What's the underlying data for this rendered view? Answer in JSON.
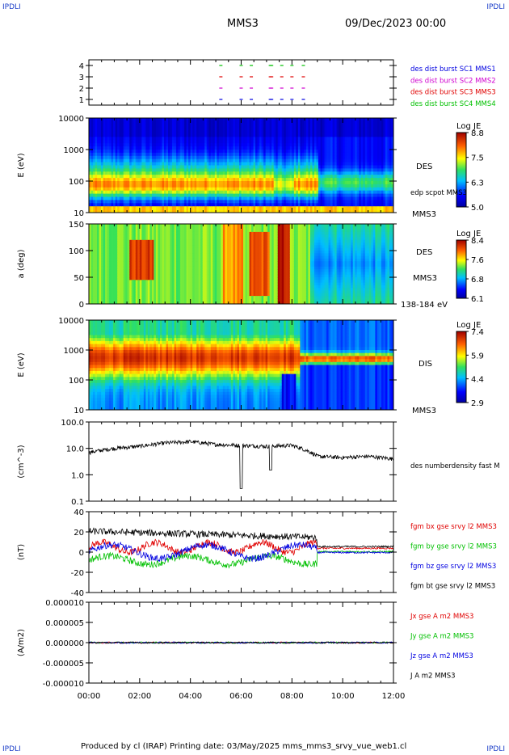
{
  "corner_labels": {
    "tl": "IPDLI",
    "tr": "IPDLI",
    "bl": "IPDLI",
    "br": "IPDLI"
  },
  "header": {
    "spacecraft": "MMS3",
    "date": "09/Dec/2023 00:00"
  },
  "footer": {
    "text": "Produced by cl (IRAP)   Printing date: 03/May/2025   mms_mms3_srvy_vue_web1.cl"
  },
  "colors": {
    "red": "#e00000",
    "green": "#00c000",
    "blue": "#0000e0",
    "magenta": "#d000d0",
    "black": "#000000"
  },
  "x_axis": {
    "ticks": [
      "00:00",
      "02:00",
      "04:00",
      "06:00",
      "08:00",
      "10:00",
      "12:00"
    ],
    "range_hours": [
      0,
      12
    ]
  },
  "chart_data": [
    {
      "type": "scatter",
      "id": "burst",
      "y_ticks": [
        "1",
        "2",
        "3",
        "4"
      ],
      "ylim": [
        0.5,
        4.5
      ],
      "series": [
        {
          "name": "des dist burst SC1 MMS1",
          "color": "blue",
          "y": 1
        },
        {
          "name": "des dist burst SC2 MMS2",
          "color": "magenta",
          "y": 2
        },
        {
          "name": "des dist burst SC3 MMS3",
          "color": "red",
          "y": 3
        },
        {
          "name": "des dist burst SC4 MMS4",
          "color": "green",
          "y": 4
        }
      ],
      "burst_times_hours": [
        5.2,
        6.0,
        6.4,
        7.15,
        7.2,
        7.6,
        8.0,
        8.45
      ]
    },
    {
      "type": "heatmap",
      "id": "des-energy",
      "ylabel": "E (eV)",
      "y_ticks": [
        "10",
        "100",
        "1000",
        "10000"
      ],
      "ylim": [
        10,
        30000
      ],
      "side_labels": [
        "DES",
        "edp scpot MMS3",
        "MMS3"
      ],
      "colorbar": {
        "title": "Log JE",
        "ticks": [
          "8.8",
          "7.5",
          "6.3",
          "5.0"
        ],
        "range": [
          5.0,
          8.8
        ]
      }
    },
    {
      "type": "heatmap",
      "id": "des-pitch",
      "ylabel": "a (deg)",
      "y_ticks": [
        "0",
        "50",
        "100",
        "150"
      ],
      "ylim": [
        0,
        180
      ],
      "side_labels": [
        "DES",
        "MMS3",
        "138-184 eV"
      ],
      "colorbar": {
        "title": "Log JE",
        "ticks": [
          "8.4",
          "7.6",
          "6.8",
          "6.1"
        ],
        "range": [
          6.1,
          8.4
        ]
      }
    },
    {
      "type": "heatmap",
      "id": "dis-energy",
      "ylabel": "E (eV)",
      "y_ticks": [
        "10",
        "100",
        "1000",
        "10000"
      ],
      "ylim": [
        10,
        20000
      ],
      "side_labels": [
        "DIS",
        "MMS3"
      ],
      "colorbar": {
        "title": "Log JE",
        "ticks": [
          "7.4",
          "5.9",
          "4.4",
          "2.9"
        ],
        "range": [
          2.9,
          7.4
        ]
      }
    },
    {
      "type": "line",
      "id": "density",
      "ylabel": "(cm^-3)",
      "y_ticks": [
        "0.1",
        "1.0",
        "10.0",
        "100.0"
      ],
      "ylim": [
        0.1,
        100
      ],
      "log": true,
      "series": [
        {
          "name": "des numberdensity fast M",
          "color": "black"
        }
      ],
      "values_per_hour": [
        7,
        10,
        12,
        16,
        18,
        14,
        13,
        12,
        13,
        5,
        4.5,
        5,
        4
      ]
    },
    {
      "type": "line",
      "id": "fgm",
      "ylabel": "(nT)",
      "y_ticks": [
        "-40",
        "-20",
        "0",
        "20",
        "40"
      ],
      "ylim": [
        -50,
        45
      ],
      "series": [
        {
          "name": "fgm bx gse srvy l2 MMS3",
          "color": "red"
        },
        {
          "name": "fgm by gse srvy l2 MMS3",
          "color": "green"
        },
        {
          "name": "fgm bz gse srvy l2 MMS3",
          "color": "blue"
        },
        {
          "name": "fgm bt gse srvy l2 MMS3",
          "color": "black"
        }
      ]
    },
    {
      "type": "line",
      "id": "current",
      "ylabel": "(A/m2)",
      "y_ticks": [
        "-0.000010",
        "-0.000005",
        "0.000000",
        "0.000005",
        "0.000010"
      ],
      "ylim": [
        -1e-05,
        1e-05
      ],
      "series": [
        {
          "name": "Jx gse A m2 MMS3",
          "color": "red"
        },
        {
          "name": "Jy gse A m2 MMS3",
          "color": "green"
        },
        {
          "name": "Jz gse A m2 MMS3",
          "color": "blue"
        },
        {
          "name": "J A m2 MMS3",
          "color": "black"
        }
      ]
    }
  ]
}
